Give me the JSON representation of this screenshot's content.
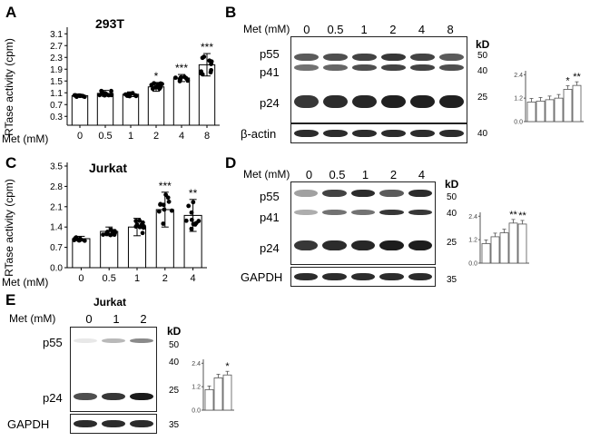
{
  "panels": {
    "A": {
      "letter": "A",
      "title": "293T",
      "ylabel": "RTase activity (cpm)",
      "xtitle": "Met (mM)",
      "chart": {
        "type": "bar",
        "categories": [
          "0",
          "0.5",
          "1",
          "2",
          "4",
          "8"
        ],
        "values": [
          1.0,
          1.08,
          1.05,
          1.3,
          1.6,
          2.05
        ],
        "errors": [
          0.05,
          0.1,
          0.08,
          0.15,
          0.12,
          0.38
        ],
        "sig": [
          "",
          "",
          "",
          "*",
          "***",
          "***"
        ],
        "ylim": [
          0,
          3.2
        ],
        "yticks": [
          "0.3",
          "0.7",
          "1.1",
          "1.5",
          "1.9",
          "2.3",
          "2.7",
          "3.1"
        ]
      }
    },
    "B": {
      "letter": "B",
      "met_title": "Met (mM)",
      "lanes": [
        "0",
        "0.5",
        "1",
        "2",
        "4",
        "8"
      ],
      "kd_label": "kD",
      "band_labels": [
        "p55",
        "p41",
        "p24"
      ],
      "ladder": [
        "50",
        "40",
        "25"
      ],
      "loading_label": "β-actin",
      "loading_ladder": "40",
      "inset": {
        "yticks": [
          "0.0",
          "1.2",
          "2.4"
        ],
        "values": [
          1.0,
          1.05,
          1.12,
          1.2,
          1.65,
          1.85
        ],
        "sig": [
          "",
          "",
          "",
          "",
          "*",
          "**"
        ]
      }
    },
    "C": {
      "letter": "C",
      "title": "Jurkat",
      "ylabel": "RTase activity (cpm)",
      "xtitle": "Met (mM)",
      "chart": {
        "type": "bar",
        "categories": [
          "0",
          "0.5",
          "1",
          "2",
          "4"
        ],
        "values": [
          1.0,
          1.25,
          1.4,
          2.0,
          1.8
        ],
        "errors": [
          0.08,
          0.15,
          0.3,
          0.6,
          0.55
        ],
        "sig": [
          "",
          "",
          "",
          "***",
          "**"
        ],
        "ylim": [
          0,
          3.5
        ],
        "yticks": [
          "0.0",
          "0.7",
          "1.4",
          "2.1",
          "2.8",
          "3.5"
        ]
      }
    },
    "D": {
      "letter": "D",
      "met_title": "Met (mM)",
      "lanes": [
        "0",
        "0.5",
        "1",
        "2",
        "4"
      ],
      "kd_label": "kD",
      "band_labels": [
        "p55",
        "p41",
        "p24"
      ],
      "ladder": [
        "50",
        "40",
        "25"
      ],
      "loading_label": "GAPDH",
      "loading_ladder": "35",
      "inset": {
        "yticks": [
          "0.0",
          "1.2",
          "2.4"
        ],
        "values": [
          1.0,
          1.35,
          1.55,
          2.05,
          2.0
        ],
        "sig": [
          "",
          "",
          "",
          "**",
          "**"
        ]
      }
    },
    "E": {
      "letter": "E",
      "title": "Jurkat",
      "met_title": "Met (mM)",
      "lanes": [
        "0",
        "1",
        "2"
      ],
      "kd_label": "kD",
      "band_labels": [
        "p55",
        "p24"
      ],
      "ladder": [
        "50",
        "40",
        "25"
      ],
      "loading_label": "GAPDH",
      "loading_ladder": "35",
      "inset": {
        "yticks": [
          "0.0",
          "1.2",
          "2.4"
        ],
        "values": [
          1.05,
          1.65,
          1.8
        ],
        "sig": [
          "",
          "",
          "*"
        ]
      }
    }
  }
}
